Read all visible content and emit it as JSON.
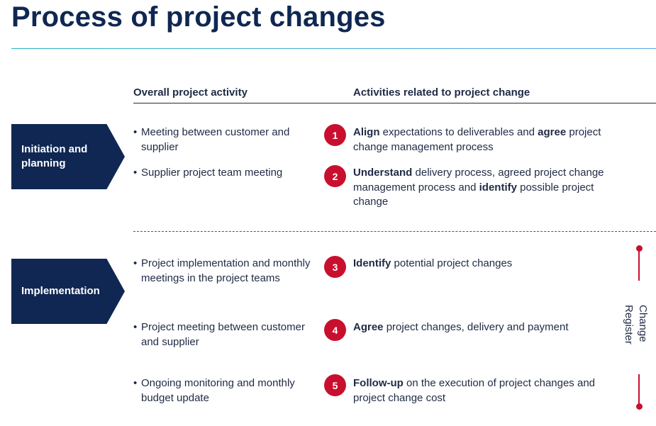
{
  "title": "Process of project changes",
  "columns": {
    "left": "Overall project activity",
    "right": "Activities related to project change"
  },
  "phases": [
    {
      "label_line1": "Initiation and",
      "label_line2": "planning"
    },
    {
      "label_line1": "Implementation",
      "label_line2": ""
    }
  ],
  "overall_activities": [
    "Meeting between customer and supplier",
    "Supplier project team meeting",
    "Project implementation and monthly meetings in the project teams",
    "Project meeting between customer and supplier",
    "Ongoing monitoring and monthly budget update"
  ],
  "change_activities": [
    {
      "number": "1",
      "parts": [
        {
          "text": "Align",
          "bold": true
        },
        {
          "text": " expectations to deliverables and ",
          "bold": false
        },
        {
          "text": "agree",
          "bold": true
        },
        {
          "text": " project change management process",
          "bold": false
        }
      ]
    },
    {
      "number": "2",
      "parts": [
        {
          "text": "Understand",
          "bold": true
        },
        {
          "text": " delivery process, agreed project change management process and ",
          "bold": false
        },
        {
          "text": "identify",
          "bold": true
        },
        {
          "text": " possible project change",
          "bold": false
        }
      ]
    },
    {
      "number": "3",
      "parts": [
        {
          "text": "Identify",
          "bold": true
        },
        {
          "text": " potential project changes",
          "bold": false
        }
      ]
    },
    {
      "number": "4",
      "parts": [
        {
          "text": "Agree",
          "bold": true
        },
        {
          "text": " project changes, delivery and payment",
          "bold": false
        }
      ]
    },
    {
      "number": "5",
      "parts": [
        {
          "text": "Follow-up",
          "bold": true
        },
        {
          "text": " on the execution of project changes and project change cost",
          "bold": false
        }
      ]
    }
  ],
  "change_register": {
    "line1": "Change",
    "line2": "Register"
  },
  "colors": {
    "navy": "#0f2752",
    "accent_red": "#c8102e",
    "rule_teal": "#2bb5c7"
  }
}
